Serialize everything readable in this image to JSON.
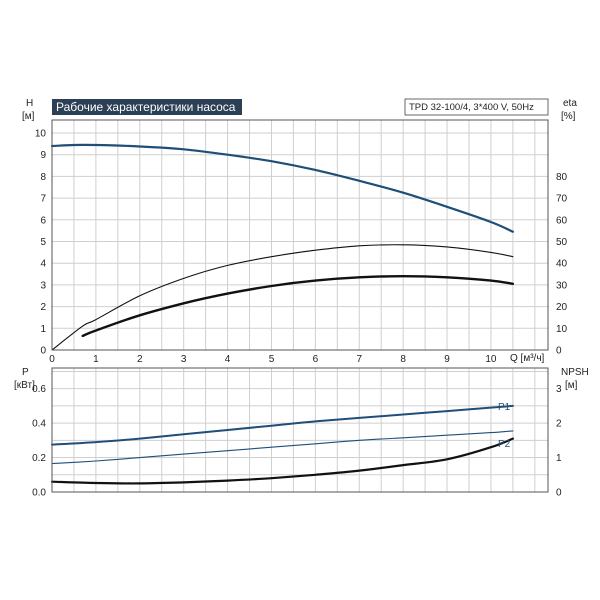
{
  "chart_data": [
    {
      "type": "line",
      "title": "Рабочие характеристики насоса",
      "model": "TPD 32-100/4, 3*400 V, 50Hz",
      "ylabel": "H",
      "yunit": "[м]",
      "y2label": "eta",
      "y2unit": "[%]",
      "xlabel": "Q [м³/ч]",
      "xlim": [
        0,
        11.3
      ],
      "ylim": [
        0,
        10.6
      ],
      "y2lim": [
        0,
        106
      ],
      "x_ticks": [
        "0",
        "1",
        "2",
        "3",
        "4",
        "5",
        "6",
        "7",
        "8",
        "9",
        "10"
      ],
      "y_ticks": [
        "0",
        "1",
        "2",
        "3",
        "4",
        "5",
        "6",
        "7",
        "8",
        "9",
        "10"
      ],
      "y2_ticks": [
        "0",
        "10",
        "20",
        "30",
        "40",
        "50",
        "60",
        "70",
        "80"
      ],
      "grid": true,
      "series": [
        {
          "color": "#1f4e79",
          "width": 2.2,
          "axis": "left",
          "x": [
            0,
            0.5,
            1,
            2,
            3,
            4,
            5,
            6,
            7,
            8,
            9,
            10,
            10.5
          ],
          "y": [
            9.4,
            9.45,
            9.45,
            9.38,
            9.25,
            9.0,
            8.7,
            8.3,
            7.8,
            7.25,
            6.6,
            5.9,
            5.45
          ]
        },
        {
          "color": "#111111",
          "width": 1.1,
          "axis": "right",
          "x": [
            0,
            0.7,
            1,
            2,
            3,
            4,
            5,
            6,
            7,
            8,
            9,
            10,
            10.5
          ],
          "y": [
            0,
            11,
            14,
            25,
            33,
            39,
            43,
            46,
            48,
            48.5,
            47.5,
            45,
            43
          ]
        },
        {
          "color": "#111111",
          "width": 2.4,
          "axis": "left",
          "x": [
            0.7,
            1,
            2,
            3,
            4,
            5,
            6,
            7,
            8,
            9,
            10,
            10.5
          ],
          "y": [
            0.65,
            0.9,
            1.6,
            2.15,
            2.6,
            2.95,
            3.2,
            3.35,
            3.4,
            3.35,
            3.2,
            3.05
          ]
        }
      ]
    },
    {
      "type": "line",
      "ylabel": "P",
      "yunit": "[кВт]",
      "y2label": "NPSH",
      "y2unit": "[м]",
      "xlim": [
        0,
        11.3
      ],
      "ylim": [
        0,
        0.72
      ],
      "y2lim": [
        0,
        3.6
      ],
      "y_ticks": [
        "0.0",
        "0.2",
        "0.4",
        "0.6"
      ],
      "y2_ticks": [
        "0",
        "1",
        "2",
        "3"
      ],
      "grid": true,
      "series": [
        {
          "name": "P1",
          "color": "#1f4e79",
          "width": 2.0,
          "axis": "left",
          "x": [
            0,
            1,
            2,
            3,
            4,
            5,
            6,
            7,
            8,
            9,
            10,
            10.5
          ],
          "y": [
            0.275,
            0.29,
            0.31,
            0.335,
            0.36,
            0.385,
            0.41,
            0.43,
            0.45,
            0.47,
            0.49,
            0.5
          ]
        },
        {
          "name": "P2",
          "color": "#1f4e79",
          "width": 1.1,
          "axis": "left",
          "x": [
            0,
            1,
            2,
            3,
            4,
            5,
            6,
            7,
            8,
            9,
            10,
            10.5
          ],
          "y": [
            0.165,
            0.18,
            0.2,
            0.22,
            0.24,
            0.26,
            0.28,
            0.3,
            0.315,
            0.33,
            0.345,
            0.355
          ]
        },
        {
          "color": "#111111",
          "width": 2.2,
          "axis": "right",
          "x": [
            0,
            1,
            2,
            3,
            4,
            5,
            6,
            7,
            8,
            9,
            10,
            10.5
          ],
          "y": [
            0.3,
            0.26,
            0.25,
            0.28,
            0.33,
            0.4,
            0.5,
            0.62,
            0.78,
            0.95,
            1.3,
            1.55
          ]
        }
      ]
    }
  ]
}
